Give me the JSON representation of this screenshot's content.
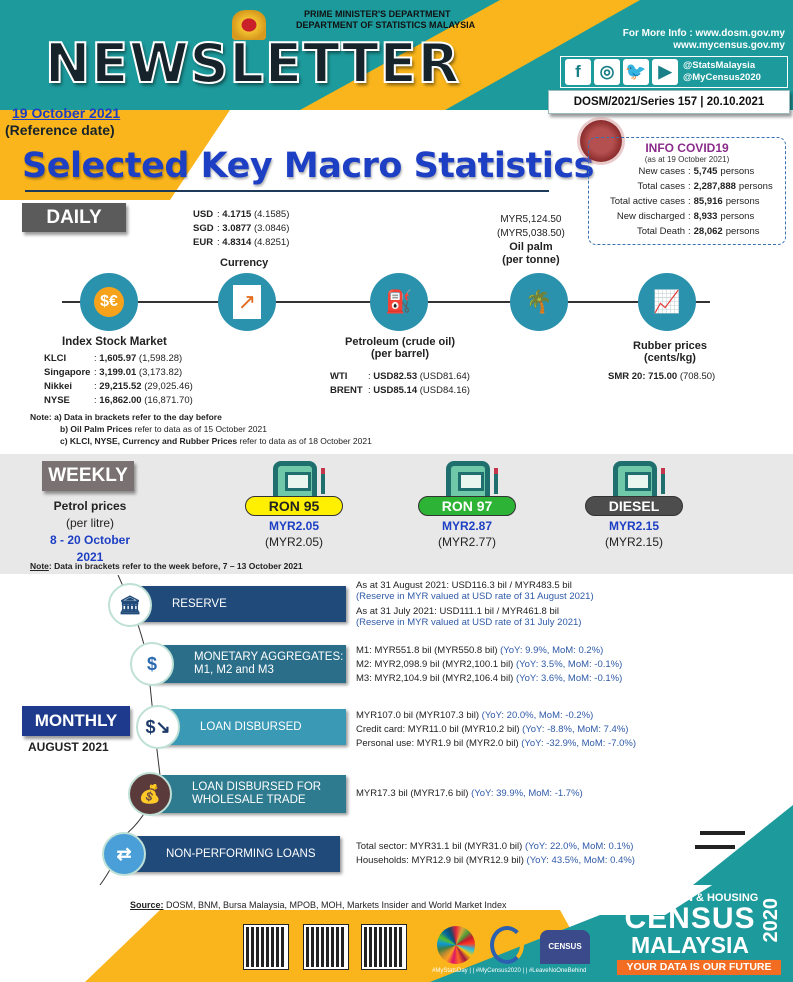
{
  "header": {
    "dept_line1": "PRIME MINISTER'S DEPARTMENT",
    "dept_line2": "DEPARTMENT OF STATISTICS MALAYSIA",
    "newsletter": "NEWSLETTER",
    "more_info": "For More Info : www.dosm.gov.my",
    "more_info2": "www.mycensus.gov.my",
    "social_handle1": "@StatsMalaysia",
    "social_handle2": "@MyCensus2020",
    "social_icons": [
      "facebook-icon",
      "instagram-icon",
      "twitter-icon",
      "youtube-icon"
    ],
    "series": "DOSM/2021/Series 157",
    "series_date": "20.10.2021",
    "date": "19 October 2021",
    "date_note": "(Reference date)",
    "title": "Selected Key Macro Statistics"
  },
  "covid": {
    "title": "INFO COVID19",
    "as_at": "(as at 19 October 2021)",
    "rows": [
      {
        "label": "New cases",
        "value": "5,745",
        "unit": "persons"
      },
      {
        "label": "Total cases",
        "value": "2,287,888",
        "unit": "persons"
      },
      {
        "label": "Total active cases",
        "value": "85,916",
        "unit": "persons"
      },
      {
        "label": "New discharged",
        "value": "8,933",
        "unit": "persons"
      },
      {
        "label": "Total Death",
        "value": "28,062",
        "unit": "persons"
      }
    ]
  },
  "daily": {
    "badge": "DAILY",
    "currency": {
      "label": "Currency",
      "rows": [
        {
          "k": "USD",
          "v": "4.1715",
          "p": "(4.1585)"
        },
        {
          "k": "SGD",
          "v": "3.0877",
          "p": "(3.0846)"
        },
        {
          "k": "EUR",
          "v": "4.8314",
          "p": "(4.8251)"
        }
      ]
    },
    "stock": {
      "label": "Index Stock Market",
      "rows": [
        {
          "k": "KLCI",
          "v": "1,605.97",
          "p": "(1,598.28)"
        },
        {
          "k": "Singapore",
          "v": "3,199.01",
          "p": "(3,173.82)"
        },
        {
          "k": "Nikkei",
          "v": "29,215.52",
          "p": "(29,025.46)"
        },
        {
          "k": "NYSE",
          "v": "16,862.00",
          "p": "(16,871.70)"
        }
      ]
    },
    "petroleum": {
      "label": "Petroleum (crude oil)",
      "unit": "(per barrel)",
      "rows": [
        {
          "k": "WTI",
          "v": "USD82.53",
          "p": "(USD81.64)"
        },
        {
          "k": "BRENT",
          "v": "USD85.14",
          "p": "(USD84.16)"
        }
      ]
    },
    "oilpalm": {
      "value": "MYR5,124.50",
      "prev": "(MYR5,038.50)",
      "label": "Oil palm",
      "unit": "(per tonne)"
    },
    "rubber": {
      "label": "Rubber prices",
      "unit": "(cents/kg)",
      "value": "SMR 20: 715.00",
      "prev": "(708.50)"
    },
    "notes": {
      "prefix": "Note:",
      "a": "a) Data in brackets refer to the day before",
      "b_bold": "b) Oil Palm Prices",
      "b": " refer to data as of  15 October 2021",
      "c_bold": "c) KLCI, NYSE, Currency and Rubber Prices",
      "c": " refer to data as of 18 October 2021"
    }
  },
  "weekly": {
    "badge": "WEEKLY",
    "label": "Petrol prices",
    "unit": "(per litre)",
    "period": "8 - 20 October 2021",
    "fuels": [
      {
        "name": "RON 95",
        "value": "MYR2.05",
        "prev": "(MYR2.05)",
        "color": "#ffef00"
      },
      {
        "name": "RON 97",
        "value": "MYR2.87",
        "prev": "(MYR2.77)",
        "color": "#2db335"
      },
      {
        "name": "DIESEL",
        "value": "MYR2.15",
        "prev": "(MYR2.15)",
        "color": "#4d4d4d"
      }
    ],
    "note_prefix": "Note",
    "note": ": Data in brackets refer to the week before, 7 – 13 October 2021"
  },
  "monthly": {
    "badge": "MONTHLY",
    "period": "AUGUST 2021",
    "reserve": {
      "label": "RESERVE",
      "l1": "As at 31 August 2021: USD116.3 bil / MYR483.5 bil",
      "l2": "(Reserve in MYR valued at USD rate of 31 August 2021)",
      "l3": "As at 31 July 2021: USD111.1 bil / MYR461.8 bil",
      "l4": "(Reserve in MYR valued at USD rate of 31 July 2021)"
    },
    "monetary": {
      "label1": "MONETARY AGGREGATES:",
      "label2": "M1, M2 and M3",
      "rows": [
        {
          "v": "M1: MYR551.8 bil (MYR550.8 bil)",
          "g": " (YoY: 9.9%, MoM: 0.2%)"
        },
        {
          "v": "M2: MYR2,098.9 bil (MYR2,100.1 bil)",
          "g": " (YoY: 3.5%, MoM: -0.1%)"
        },
        {
          "v": "M3: MYR2,104.9 bil (MYR2,106.4 bil)",
          "g": " (YoY: 3.6%, MoM: -0.1%)"
        }
      ]
    },
    "loan": {
      "label": "LOAN DISBURSED",
      "rows": [
        {
          "v": "MYR107.0 bil (MYR107.3 bil)",
          "g": " (YoY: 20.0%, MoM: -0.2%)"
        },
        {
          "v": "Credit card: MYR11.0 bil (MYR10.2 bil)",
          "g": " (YoY: -8.8%, MoM: 7.4%)"
        },
        {
          "v": "Personal use: MYR1.9 bil (MYR2.0 bil)",
          "g": " (YoY: -32.9%, MoM: -7.0%)"
        }
      ]
    },
    "wholesale": {
      "label1": "LOAN DISBURSED FOR",
      "label2": "WHOLESALE TRADE",
      "rows": [
        {
          "v": "MYR17.3 bil (MYR17.6 bil)",
          "g": " (YoY: 39.9%, MoM: -1.7%)"
        }
      ]
    },
    "npl": {
      "label": "NON-PERFORMING LOANS",
      "rows": [
        {
          "v": "Total sector: MYR31.1 bil (MYR31.0 bil)",
          "g": " (YoY: 22.0%, MoM: 0.1%)"
        },
        {
          "v": "Households: MYR12.9 bil (MYR12.9 bil)",
          "g": " (YoY: 43.5%, MoM: 0.4%)"
        }
      ]
    }
  },
  "footer": {
    "source_label": "Source:",
    "source": " DOSM, BNM, Bursa Malaysia, MPOB, MOH, Markets Insider and World Market Index",
    "hashtags": "#MyStatsDay | | #MyCensus2020 | | #LeaveNoOneBehind",
    "census1": "POPULATION & HOUSING",
    "census2": "CENSUS",
    "census3": "MALAYSIA",
    "census_year": "2020",
    "tagline": "YOUR DATA IS OUR FUTURE"
  },
  "colors": {
    "teal": "#1d9a9c",
    "yellow": "#f9b51b",
    "blue_title": "#1d3fc4",
    "navy": "#1e4a78"
  }
}
